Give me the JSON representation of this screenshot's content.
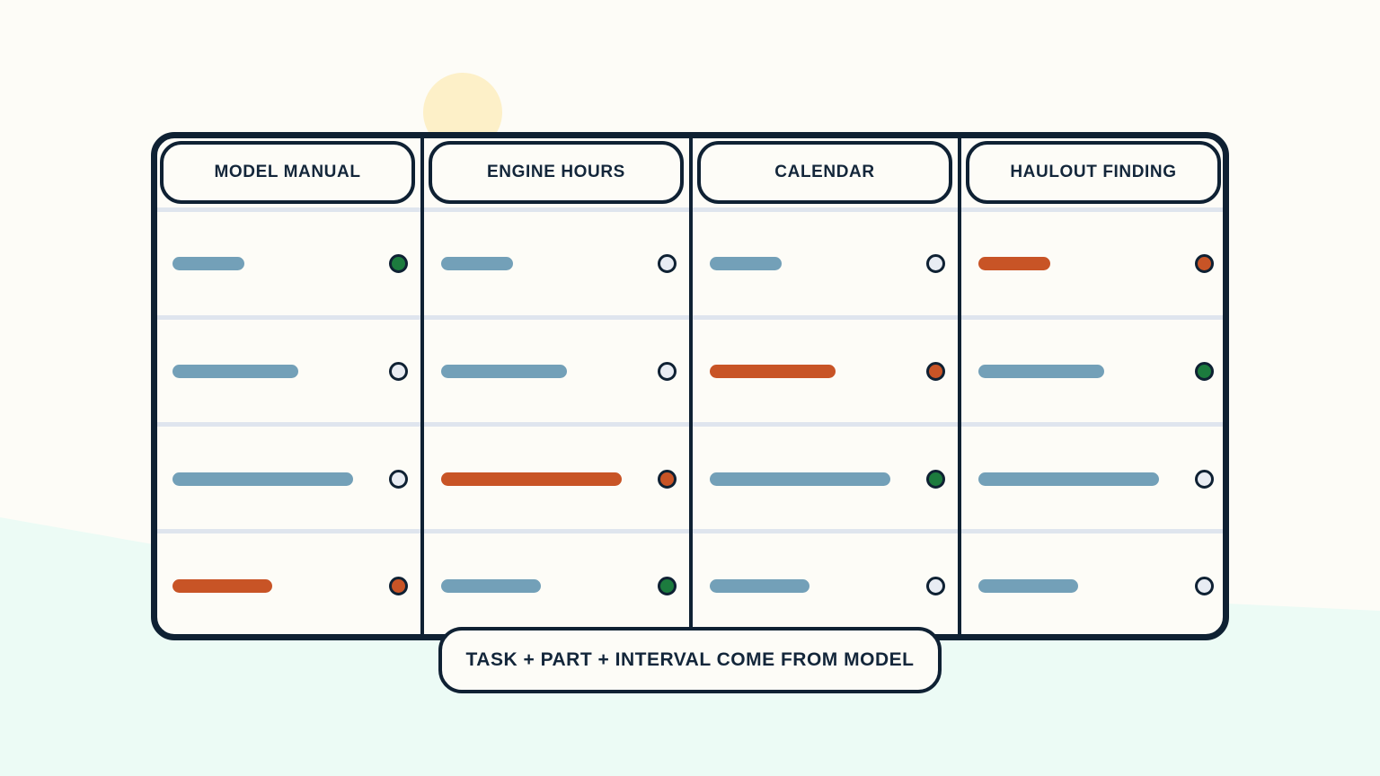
{
  "colors": {
    "background": "#fdfcf7",
    "ground": "#ecfbf5",
    "sun": "#fdf0c8",
    "ink": "#0f2133",
    "divider": "#dfe5ee",
    "bar_neutral": "#73a0b8",
    "bar_alert": "#c85426",
    "dot_empty": "#e8ecf3",
    "dot_ok": "#1c7b3e",
    "dot_alert": "#c85426"
  },
  "columns": [
    {
      "label": "MODEL MANUAL",
      "rows": [
        {
          "bar": "neutral",
          "bar_fill": 0.3,
          "dot": "ok"
        },
        {
          "bar": "neutral",
          "bar_fill": 0.53,
          "dot": "empty"
        },
        {
          "bar": "neutral",
          "bar_fill": 0.76,
          "dot": "empty"
        },
        {
          "bar": "alert",
          "bar_fill": 0.42,
          "dot": "alert"
        }
      ]
    },
    {
      "label": "ENGINE HOURS",
      "rows": [
        {
          "bar": "neutral",
          "bar_fill": 0.3,
          "dot": "empty"
        },
        {
          "bar": "neutral",
          "bar_fill": 0.53,
          "dot": "empty"
        },
        {
          "bar": "alert",
          "bar_fill": 0.76,
          "dot": "alert"
        },
        {
          "bar": "neutral",
          "bar_fill": 0.42,
          "dot": "ok"
        }
      ]
    },
    {
      "label": "CALENDAR",
      "rows": [
        {
          "bar": "neutral",
          "bar_fill": 0.3,
          "dot": "empty"
        },
        {
          "bar": "alert",
          "bar_fill": 0.53,
          "dot": "alert"
        },
        {
          "bar": "neutral",
          "bar_fill": 0.76,
          "dot": "ok"
        },
        {
          "bar": "neutral",
          "bar_fill": 0.42,
          "dot": "empty"
        }
      ]
    },
    {
      "label": "HAULOUT FINDING",
      "rows": [
        {
          "bar": "alert",
          "bar_fill": 0.3,
          "dot": "alert"
        },
        {
          "bar": "neutral",
          "bar_fill": 0.53,
          "dot": "ok"
        },
        {
          "bar": "neutral",
          "bar_fill": 0.76,
          "dot": "empty"
        },
        {
          "bar": "neutral",
          "bar_fill": 0.42,
          "dot": "empty"
        }
      ]
    }
  ],
  "footer": {
    "label": "TASK + PART + INTERVAL COME FROM MODEL"
  }
}
